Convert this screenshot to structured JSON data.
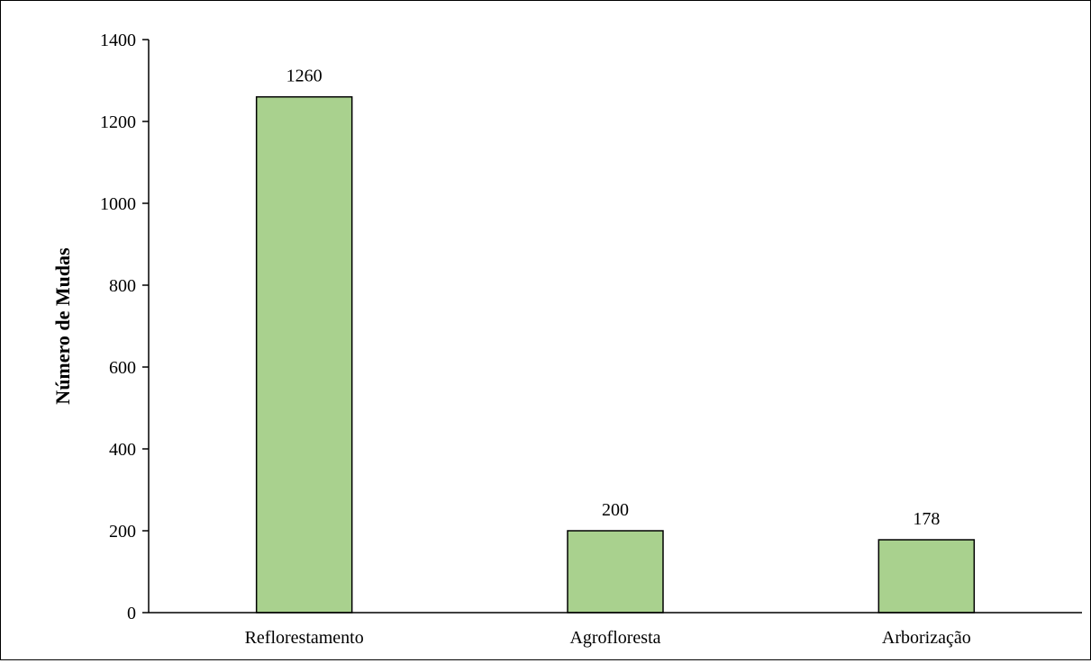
{
  "chart_data": {
    "type": "bar",
    "title": "",
    "xlabel": "",
    "ylabel": "Número de Mudas",
    "categories": [
      "Reflorestamento",
      "Agrofloresta",
      "Arborização"
    ],
    "values": [
      1260,
      200,
      178
    ],
    "data_labels": [
      "1260",
      "200",
      "178"
    ],
    "yticks": [
      0,
      200,
      400,
      600,
      800,
      1000,
      1200,
      1400
    ],
    "ytick_labels": [
      "0",
      "200",
      "400",
      "600",
      "800",
      "1000",
      "1200",
      "1400"
    ],
    "ylim": [
      0,
      1400
    ],
    "grid": false,
    "legend": "none",
    "colors": {
      "bar_fill": "#a9d18e",
      "bar_stroke": "#000000",
      "axis": "#000000"
    }
  }
}
